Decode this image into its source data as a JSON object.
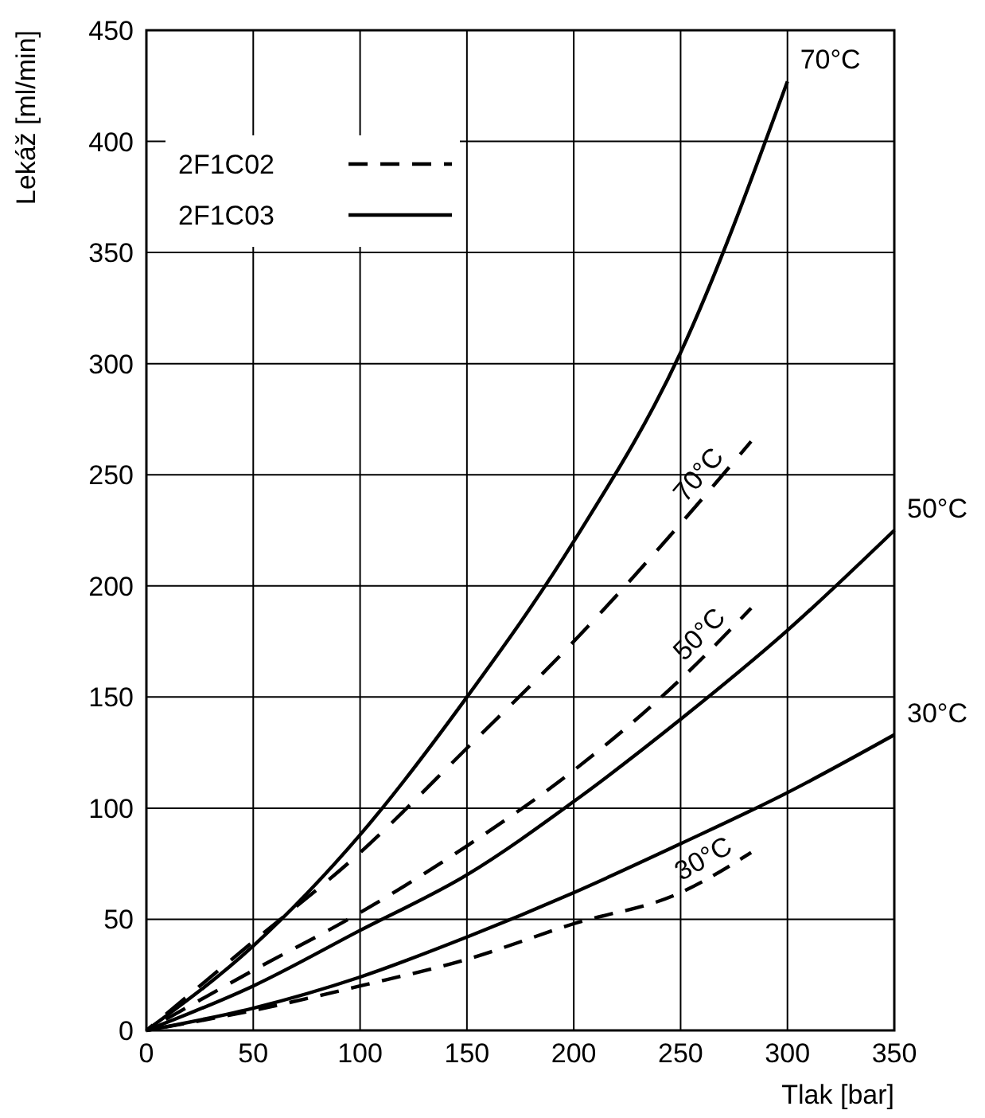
{
  "chart_data": {
    "type": "line",
    "xlabel": "Tlak [bar]",
    "ylabel": "Lekáž [ml/min]",
    "xlim": [
      0,
      350
    ],
    "ylim": [
      0,
      450
    ],
    "xticks": [
      0,
      50,
      100,
      150,
      200,
      250,
      300,
      350
    ],
    "yticks": [
      0,
      50,
      100,
      150,
      200,
      250,
      300,
      350,
      400,
      450
    ],
    "grid": true,
    "marker": "none",
    "annotations": [
      "2F1C02",
      "2F1C03"
    ],
    "series": [
      {
        "name": "70°C",
        "color": "#000000",
        "line_style": "dashed",
        "x": [
          0,
          50,
          100,
          150,
          200,
          250,
          283
        ],
        "values": [
          0,
          40,
          80,
          127,
          175,
          228,
          265
        ]
      },
      {
        "name": "50°C",
        "color": "#000000",
        "line_style": "dashed",
        "x": [
          0,
          50,
          100,
          150,
          200,
          250,
          283
        ],
        "values": [
          0,
          27,
          53,
          83,
          117,
          158,
          190
        ]
      },
      {
        "name": "30°C",
        "color": "#000000",
        "line_style": "dashed",
        "x": [
          0,
          50,
          100,
          150,
          200,
          250,
          283
        ],
        "values": [
          0,
          9,
          20,
          32,
          48,
          62,
          80
        ]
      },
      {
        "name": "70°C",
        "color": "#000000",
        "line_style": "solid",
        "x": [
          0,
          50,
          100,
          150,
          200,
          250,
          300
        ],
        "values": [
          0,
          38,
          88,
          150,
          220,
          305,
          427
        ]
      },
      {
        "name": "50°C",
        "color": "#000000",
        "line_style": "solid",
        "x": [
          0,
          50,
          100,
          150,
          200,
          250,
          300,
          350
        ],
        "values": [
          0,
          20,
          45,
          70,
          103,
          140,
          180,
          225
        ]
      },
      {
        "name": "30°C",
        "color": "#000000",
        "line_style": "solid",
        "x": [
          0,
          50,
          100,
          150,
          200,
          250,
          300,
          350
        ],
        "values": [
          0,
          10,
          24,
          42,
          62,
          84,
          107,
          133
        ]
      }
    ]
  }
}
